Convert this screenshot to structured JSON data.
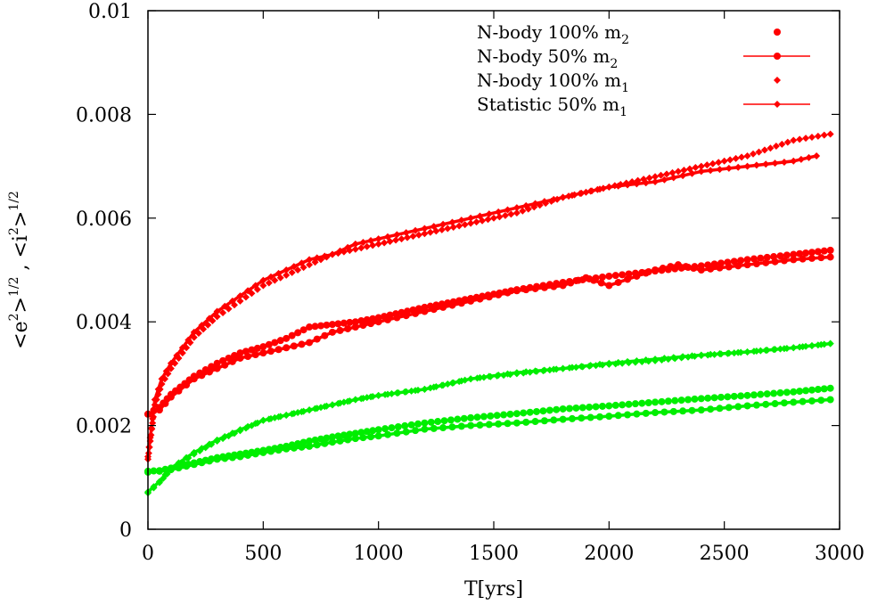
{
  "chart_data": {
    "type": "line",
    "xlabel": "T[yrs]",
    "ylabel": {
      "parts": [
        "<e",
        "2",
        ">",
        "1/2",
        " , <i",
        "2",
        ">",
        "1/2"
      ]
    },
    "xlim": [
      0,
      3000
    ],
    "ylim": [
      0,
      0.01
    ],
    "x_ticks": [
      0,
      500,
      1000,
      1500,
      2000,
      2500,
      3000
    ],
    "x_tick_labels": [
      "0",
      "500",
      "1000",
      "1500",
      "2000",
      "2500",
      "3000"
    ],
    "y_ticks": [
      0,
      0.002,
      0.004,
      0.006,
      0.008,
      0.01
    ],
    "y_tick_labels": [
      "0",
      "0.002",
      "0.004",
      "0.006",
      "0.008",
      "0.01"
    ],
    "grid": false,
    "legend_position": "top-right",
    "legend": [
      {
        "text": "N-body 100% m",
        "sub": "2",
        "style": "dot",
        "color": "#ff0000"
      },
      {
        "text": "N-body 50% m",
        "sub": "2",
        "style": "line-dot",
        "color": "#ff0000"
      },
      {
        "text": "N-body 100% m",
        "sub": "1",
        "style": "diamond",
        "color": "#ff0000"
      },
      {
        "text": "Statistic 50% m",
        "sub": "1",
        "style": "line-diamond",
        "color": "#ff0000"
      }
    ],
    "series": [
      {
        "group": "eccentricity",
        "color": "#ff0000",
        "style": "dot",
        "x": [
          0,
          50,
          100,
          200,
          300,
          400,
          500,
          600,
          700,
          800,
          900,
          1000,
          1200,
          1400,
          1600,
          1800,
          2000,
          2200,
          2400,
          2600,
          2800,
          2960
        ],
        "y": [
          0.00222,
          0.00235,
          0.0026,
          0.00295,
          0.0032,
          0.0034,
          0.00352,
          0.00368,
          0.0039,
          0.00395,
          0.004,
          0.00408,
          0.00428,
          0.00445,
          0.00462,
          0.00476,
          0.00488,
          0.00498,
          0.00508,
          0.0052,
          0.0053,
          0.00538
        ]
      },
      {
        "group": "eccentricity",
        "color": "#ff0000",
        "style": "line-dot",
        "x": [
          0,
          50,
          100,
          200,
          300,
          400,
          500,
          600,
          700,
          800,
          900,
          1000,
          1200,
          1400,
          1600,
          1800,
          1900,
          2000,
          2200,
          2300,
          2400,
          2600,
          2800,
          2960
        ],
        "y": [
          0.00222,
          0.0023,
          0.00255,
          0.0029,
          0.0031,
          0.0033,
          0.0034,
          0.0035,
          0.0036,
          0.0038,
          0.0039,
          0.004,
          0.0042,
          0.0044,
          0.0046,
          0.0047,
          0.00485,
          0.0047,
          0.005,
          0.0051,
          0.005,
          0.0051,
          0.0052,
          0.00525
        ]
      },
      {
        "group": "eccentricity",
        "color": "#ff0000",
        "style": "diamond",
        "x": [
          0,
          30,
          60,
          100,
          150,
          200,
          300,
          400,
          500,
          600,
          700,
          800,
          900,
          1000,
          1200,
          1400,
          1600,
          1800,
          2000,
          2200,
          2400,
          2600,
          2800,
          2960
        ],
        "y": [
          0.00135,
          0.0024,
          0.0028,
          0.0031,
          0.0034,
          0.0037,
          0.0041,
          0.0044,
          0.0047,
          0.0049,
          0.0051,
          0.0053,
          0.0054,
          0.0055,
          0.0057,
          0.0059,
          0.0061,
          0.0064,
          0.0066,
          0.0068,
          0.007,
          0.0072,
          0.0075,
          0.00762
        ]
      },
      {
        "group": "eccentricity",
        "color": "#ff0000",
        "style": "line-diamond",
        "x": [
          0,
          30,
          60,
          100,
          150,
          200,
          300,
          400,
          500,
          600,
          700,
          800,
          900,
          1000,
          1200,
          1400,
          1600,
          1800,
          2000,
          2200,
          2400,
          2600,
          2800,
          2900
        ],
        "y": [
          0.0014,
          0.0025,
          0.0029,
          0.0032,
          0.0035,
          0.0038,
          0.0042,
          0.0045,
          0.0048,
          0.005,
          0.0052,
          0.0053,
          0.0055,
          0.0056,
          0.0058,
          0.006,
          0.0062,
          0.0064,
          0.0066,
          0.0067,
          0.0069,
          0.007,
          0.0071,
          0.0072
        ]
      },
      {
        "group": "inclination",
        "color": "#00ee00",
        "style": "dot",
        "x": [
          0,
          50,
          100,
          200,
          300,
          400,
          500,
          600,
          700,
          800,
          900,
          1000,
          1200,
          1400,
          1600,
          1800,
          2000,
          2200,
          2400,
          2600,
          2800,
          2960
        ],
        "y": [
          0.00112,
          0.00113,
          0.00118,
          0.00128,
          0.00138,
          0.00145,
          0.00152,
          0.0016,
          0.0017,
          0.00178,
          0.00185,
          0.00192,
          0.00205,
          0.00215,
          0.00223,
          0.00232,
          0.00238,
          0.00245,
          0.00252,
          0.00258,
          0.00265,
          0.00272
        ]
      },
      {
        "group": "inclination",
        "color": "#00ee00",
        "style": "line-dot",
        "x": [
          0,
          50,
          100,
          200,
          300,
          400,
          500,
          600,
          700,
          800,
          900,
          1000,
          1200,
          1400,
          1600,
          1800,
          2000,
          2200,
          2400,
          2600,
          2800,
          2960
        ],
        "y": [
          0.0011,
          0.00112,
          0.00115,
          0.00125,
          0.00135,
          0.0014,
          0.00148,
          0.00155,
          0.0016,
          0.00168,
          0.00175,
          0.0018,
          0.00193,
          0.002,
          0.00205,
          0.00212,
          0.00218,
          0.00225,
          0.0023,
          0.00238,
          0.00245,
          0.0025
        ]
      },
      {
        "group": "inclination",
        "color": "#00ee00",
        "style": "diamond",
        "x": [
          0,
          50,
          100,
          200,
          300,
          400,
          500,
          600,
          700,
          800,
          900,
          1000,
          1200,
          1400,
          1600,
          1800,
          2000,
          2200,
          2400,
          2600,
          2800,
          2960
        ],
        "y": [
          0.0007,
          0.0009,
          0.00115,
          0.00145,
          0.0017,
          0.0019,
          0.0021,
          0.0022,
          0.0023,
          0.0024,
          0.0025,
          0.00258,
          0.0027,
          0.0029,
          0.003,
          0.0031,
          0.00318,
          0.00325,
          0.00335,
          0.00342,
          0.0035,
          0.00358
        ]
      },
      {
        "group": "inclination",
        "color": "#00ee00",
        "style": "line-diamond",
        "x": [
          0,
          50,
          100,
          200,
          300,
          400,
          500,
          600,
          700,
          800,
          900,
          1000,
          1200,
          1400,
          1600,
          1800,
          2000,
          2200,
          2400,
          2600,
          2800,
          2960
        ],
        "y": [
          0.00072,
          0.00092,
          0.00118,
          0.00148,
          0.00172,
          0.00192,
          0.0021,
          0.0022,
          0.0023,
          0.0024,
          0.0025,
          0.00258,
          0.0027,
          0.0029,
          0.00302,
          0.0031,
          0.0032,
          0.00328,
          0.00336,
          0.00342,
          0.0035,
          0.00358
        ]
      }
    ]
  }
}
